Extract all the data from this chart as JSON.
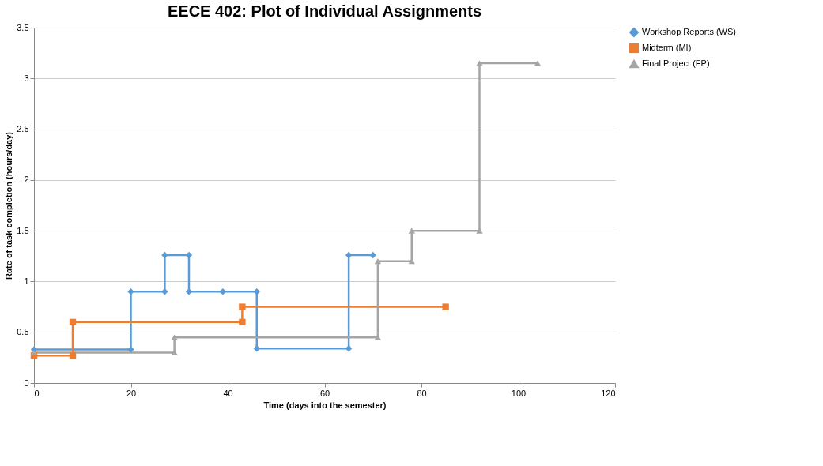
{
  "chart_data": {
    "type": "line",
    "title": "EECE 402: Plot of Individual Assignments",
    "xlabel": "Time (days into the semester)",
    "ylabel": "Rate of task completion (hours/day)",
    "xlim": [
      0,
      120
    ],
    "xticks": [
      0,
      20,
      40,
      60,
      80,
      100,
      120
    ],
    "ylim": [
      0,
      3.5
    ],
    "yticks": [
      0,
      0.5,
      1,
      1.5,
      2,
      2.5,
      3,
      3.5
    ],
    "grid": "y",
    "legend": "right",
    "series": [
      {
        "name": "Workshop Reports (WS)",
        "color": "#5b9bd5",
        "marker": "diamond",
        "x": [
          0,
          20,
          20,
          27,
          27,
          32,
          32,
          39,
          46,
          46,
          65,
          65,
          70
        ],
        "values": [
          0.33,
          0.33,
          0.9,
          0.9,
          1.26,
          1.26,
          0.9,
          0.9,
          0.9,
          0.34,
          0.34,
          1.26,
          1.26
        ]
      },
      {
        "name": "Midterm (MI)",
        "color": "#ed7d31",
        "marker": "square",
        "x": [
          0,
          8,
          8,
          43,
          43,
          85
        ],
        "values": [
          0.27,
          0.27,
          0.6,
          0.6,
          0.75,
          0.75
        ]
      },
      {
        "name": "Final Project (FP)",
        "color": "#a5a5a5",
        "marker": "triangle",
        "x": [
          0,
          29,
          29,
          71,
          71,
          78,
          78,
          92,
          92,
          104
        ],
        "values": [
          0.3,
          0.3,
          0.45,
          0.45,
          1.2,
          1.2,
          1.5,
          1.5,
          3.15,
          3.15
        ]
      }
    ]
  }
}
